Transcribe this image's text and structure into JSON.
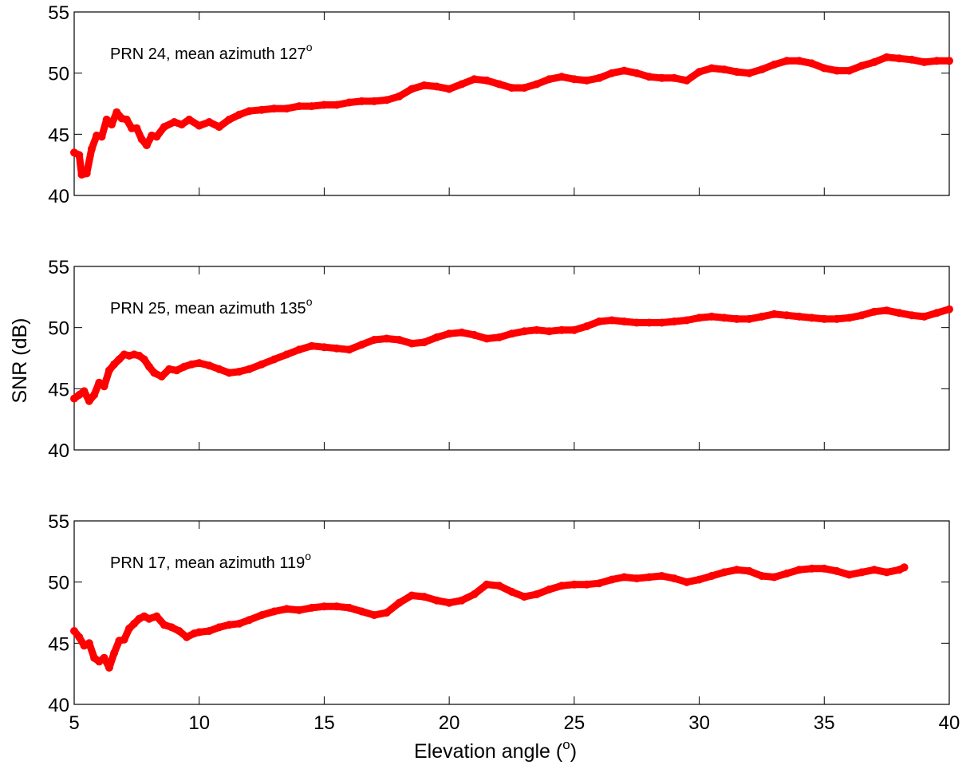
{
  "chart_data": {
    "type": "line",
    "xlabel": "Elevation angle (",
    "xlabel_sup": "o",
    "xlabel_close": ")",
    "ylabel": "SNR (dB)",
    "xlim": [
      5,
      40
    ],
    "xticks": [
      5,
      10,
      15,
      20,
      25,
      30,
      35,
      40
    ],
    "line_color": "#ff0000",
    "grid": false,
    "panels": [
      {
        "annotation": "PRN 24, mean azimuth 127",
        "annotation_sup": "o",
        "ylim": [
          40,
          55
        ],
        "yticks": [
          40,
          45,
          50,
          55
        ],
        "x": [
          5.0,
          5.2,
          5.3,
          5.5,
          5.7,
          5.9,
          6.1,
          6.3,
          6.5,
          6.7,
          6.9,
          7.1,
          7.3,
          7.5,
          7.7,
          7.9,
          8.1,
          8.3,
          8.6,
          9.0,
          9.3,
          9.6,
          10.0,
          10.4,
          10.8,
          11.2,
          11.6,
          12.0,
          12.5,
          13.0,
          13.5,
          14.0,
          14.5,
          15.0,
          15.5,
          16.0,
          16.5,
          17.0,
          17.5,
          18.0,
          18.5,
          19.0,
          19.5,
          20.0,
          20.5,
          21.0,
          21.5,
          22.0,
          22.5,
          23.0,
          23.5,
          24.0,
          24.5,
          25.0,
          25.5,
          26.0,
          26.5,
          27.0,
          27.5,
          28.0,
          28.5,
          29.0,
          29.5,
          30.0,
          30.5,
          31.0,
          31.5,
          32.0,
          32.5,
          33.0,
          33.5,
          34.0,
          34.5,
          35.0,
          35.5,
          36.0,
          36.5,
          37.0,
          37.5,
          38.0,
          38.5,
          39.0,
          39.5,
          40.0
        ],
        "y": [
          43.5,
          43.3,
          41.7,
          41.8,
          43.8,
          44.9,
          44.8,
          46.2,
          45.8,
          46.8,
          46.3,
          46.2,
          45.5,
          45.5,
          44.6,
          44.1,
          44.9,
          44.8,
          45.6,
          46.0,
          45.8,
          46.2,
          45.7,
          46.0,
          45.6,
          46.2,
          46.6,
          46.9,
          47.0,
          47.1,
          47.1,
          47.3,
          47.3,
          47.4,
          47.4,
          47.6,
          47.7,
          47.7,
          47.8,
          48.1,
          48.7,
          49.0,
          48.9,
          48.7,
          49.1,
          49.5,
          49.4,
          49.1,
          48.8,
          48.8,
          49.1,
          49.5,
          49.7,
          49.5,
          49.4,
          49.6,
          50.0,
          50.2,
          50.0,
          49.7,
          49.6,
          49.6,
          49.4,
          50.1,
          50.4,
          50.3,
          50.1,
          50.0,
          50.3,
          50.7,
          51.0,
          51.0,
          50.8,
          50.4,
          50.2,
          50.2,
          50.6,
          50.9,
          51.3,
          51.2,
          51.1,
          50.9,
          51.0,
          51.0
        ]
      },
      {
        "annotation": "PRN 25, mean azimuth 135",
        "annotation_sup": "o",
        "ylim": [
          40,
          55
        ],
        "yticks": [
          40,
          45,
          50,
          55
        ],
        "x": [
          5.0,
          5.2,
          5.4,
          5.6,
          5.8,
          6.0,
          6.2,
          6.4,
          6.6,
          6.8,
          7.0,
          7.2,
          7.4,
          7.6,
          7.8,
          8.0,
          8.2,
          8.5,
          8.8,
          9.1,
          9.4,
          9.7,
          10.0,
          10.4,
          10.8,
          11.2,
          11.6,
          12.0,
          12.5,
          13.0,
          13.5,
          14.0,
          14.5,
          15.0,
          15.5,
          16.0,
          16.5,
          17.0,
          17.5,
          18.0,
          18.5,
          19.0,
          19.5,
          20.0,
          20.5,
          21.0,
          21.5,
          22.0,
          22.5,
          23.0,
          23.5,
          24.0,
          24.5,
          25.0,
          25.5,
          26.0,
          26.5,
          27.0,
          27.5,
          28.0,
          28.5,
          29.0,
          29.5,
          30.0,
          30.5,
          31.0,
          31.5,
          32.0,
          32.5,
          33.0,
          33.5,
          34.0,
          34.5,
          35.0,
          35.5,
          36.0,
          36.5,
          37.0,
          37.5,
          38.0,
          38.5,
          39.0,
          39.5,
          40.0
        ],
        "y": [
          44.2,
          44.5,
          44.8,
          44.0,
          44.5,
          45.5,
          45.2,
          46.5,
          47.0,
          47.4,
          47.8,
          47.7,
          47.8,
          47.7,
          47.4,
          46.8,
          46.3,
          46.0,
          46.6,
          46.5,
          46.8,
          47.0,
          47.1,
          46.9,
          46.6,
          46.3,
          46.4,
          46.6,
          47.0,
          47.4,
          47.8,
          48.2,
          48.5,
          48.4,
          48.3,
          48.2,
          48.6,
          49.0,
          49.1,
          49.0,
          48.7,
          48.8,
          49.2,
          49.5,
          49.6,
          49.4,
          49.1,
          49.2,
          49.5,
          49.7,
          49.8,
          49.7,
          49.8,
          49.8,
          50.1,
          50.5,
          50.6,
          50.5,
          50.4,
          50.4,
          50.4,
          50.5,
          50.6,
          50.8,
          50.9,
          50.8,
          50.7,
          50.7,
          50.9,
          51.1,
          51.0,
          50.9,
          50.8,
          50.7,
          50.7,
          50.8,
          51.0,
          51.3,
          51.4,
          51.2,
          51.0,
          50.9,
          51.2,
          51.5
        ]
      },
      {
        "annotation": "PRN 17, mean azimuth 119",
        "annotation_sup": "o",
        "ylim": [
          40,
          55
        ],
        "yticks": [
          40,
          45,
          50,
          55
        ],
        "x": [
          5.0,
          5.2,
          5.4,
          5.6,
          5.8,
          6.0,
          6.2,
          6.4,
          6.6,
          6.8,
          7.0,
          7.2,
          7.4,
          7.6,
          7.8,
          8.0,
          8.3,
          8.6,
          8.9,
          9.2,
          9.5,
          9.8,
          10.0,
          10.4,
          10.8,
          11.2,
          11.6,
          12.0,
          12.5,
          13.0,
          13.5,
          14.0,
          14.5,
          15.0,
          15.5,
          16.0,
          16.5,
          17.0,
          17.5,
          18.0,
          18.5,
          19.0,
          19.5,
          20.0,
          20.5,
          21.0,
          21.5,
          22.0,
          22.5,
          23.0,
          23.5,
          24.0,
          24.5,
          25.0,
          25.5,
          26.0,
          26.5,
          27.0,
          27.5,
          28.0,
          28.5,
          29.0,
          29.5,
          30.0,
          30.5,
          31.0,
          31.5,
          32.0,
          32.5,
          33.0,
          33.5,
          34.0,
          34.5,
          35.0,
          35.5,
          36.0,
          36.5,
          37.0,
          37.5,
          38.0,
          38.2
        ],
        "y": [
          46.0,
          45.5,
          44.8,
          45.0,
          43.8,
          43.5,
          43.8,
          43.0,
          44.2,
          45.2,
          45.3,
          46.2,
          46.6,
          47.0,
          47.2,
          47.0,
          47.2,
          46.5,
          46.3,
          46.0,
          45.5,
          45.8,
          45.9,
          46.0,
          46.3,
          46.5,
          46.6,
          46.9,
          47.3,
          47.6,
          47.8,
          47.7,
          47.9,
          48.0,
          48.0,
          47.9,
          47.6,
          47.3,
          47.5,
          48.3,
          48.9,
          48.8,
          48.5,
          48.3,
          48.5,
          49.0,
          49.8,
          49.7,
          49.2,
          48.8,
          49.0,
          49.4,
          49.7,
          49.8,
          49.8,
          49.9,
          50.2,
          50.4,
          50.3,
          50.4,
          50.5,
          50.3,
          50.0,
          50.2,
          50.5,
          50.8,
          51.0,
          50.9,
          50.5,
          50.4,
          50.7,
          51.0,
          51.1,
          51.1,
          50.9,
          50.6,
          50.8,
          51.0,
          50.8,
          51.0,
          51.2
        ]
      }
    ]
  }
}
